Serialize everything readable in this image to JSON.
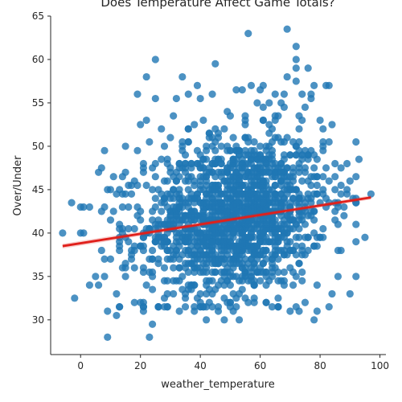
{
  "chart_data": {
    "type": "scatter",
    "title": "Does Temperature Affect Game Totals?",
    "xlabel": "weather_temperature",
    "ylabel": "Over/Under",
    "xlim": [
      -10,
      102
    ],
    "ylim": [
      26,
      65
    ],
    "xticks": [
      0,
      20,
      40,
      60,
      80,
      100
    ],
    "yticks": [
      30,
      35,
      40,
      45,
      50,
      55,
      60,
      65
    ],
    "grid": false,
    "legend": "none",
    "colors": {
      "points": "#1f77b4",
      "regression": "#e0201b",
      "axes": "#262626"
    },
    "series": [
      {
        "points": [
          [
            -6,
            40
          ],
          [
            -3,
            43.5
          ],
          [
            -2,
            32.5
          ],
          [
            0,
            43
          ],
          [
            0,
            40
          ],
          [
            1,
            40
          ],
          [
            1,
            43
          ],
          [
            3,
            34
          ],
          [
            3,
            43
          ],
          [
            5,
            35
          ],
          [
            6,
            47
          ],
          [
            6,
            34
          ],
          [
            7,
            47.5
          ],
          [
            7,
            42.5
          ],
          [
            7,
            38
          ],
          [
            8,
            43
          ],
          [
            8,
            37
          ],
          [
            8,
            35
          ],
          [
            8,
            49.5
          ],
          [
            9,
            45
          ],
          [
            9,
            28
          ],
          [
            9,
            31
          ],
          [
            10,
            45
          ],
          [
            10,
            37
          ],
          [
            10,
            41.5
          ],
          [
            11,
            46.5
          ],
          [
            11,
            42.5
          ],
          [
            12,
            44.5
          ],
          [
            12,
            30.5
          ],
          [
            12,
            33
          ],
          [
            13,
            38
          ],
          [
            14,
            40
          ],
          [
            14,
            43
          ],
          [
            14,
            46.5
          ],
          [
            15,
            50
          ],
          [
            15,
            47
          ],
          [
            15,
            35
          ],
          [
            16,
            39
          ],
          [
            17,
            37.5
          ],
          [
            18,
            32
          ],
          [
            19,
            56
          ],
          [
            19,
            49.5
          ],
          [
            20,
            52.5
          ],
          [
            20,
            32
          ],
          [
            21,
            47
          ],
          [
            21,
            31
          ],
          [
            22,
            58
          ],
          [
            22,
            53
          ],
          [
            23,
            28
          ],
          [
            23,
            50.5
          ],
          [
            24,
            29.5
          ],
          [
            25,
            60
          ],
          [
            25,
            55.5
          ],
          [
            26,
            31.5
          ],
          [
            27,
            52
          ],
          [
            28,
            50
          ],
          [
            29,
            33
          ],
          [
            29,
            48
          ],
          [
            30,
            51
          ],
          [
            31,
            53.5
          ],
          [
            32,
            55.5
          ],
          [
            33,
            31
          ],
          [
            34,
            58
          ],
          [
            34,
            50
          ],
          [
            35,
            33
          ],
          [
            36,
            56
          ],
          [
            36,
            52
          ],
          [
            37,
            48
          ],
          [
            38,
            31
          ],
          [
            38,
            52.5
          ],
          [
            39,
            57
          ],
          [
            40,
            55.5
          ],
          [
            41,
            53
          ],
          [
            42,
            30
          ],
          [
            43,
            51.5
          ],
          [
            44,
            56
          ],
          [
            45,
            59.5
          ],
          [
            45,
            52
          ],
          [
            46,
            31
          ],
          [
            47,
            48
          ],
          [
            48,
            30
          ],
          [
            49,
            54
          ],
          [
            50,
            32
          ],
          [
            51,
            31
          ],
          [
            52,
            56.5
          ],
          [
            53,
            30
          ],
          [
            54,
            56.5
          ],
          [
            55,
            51
          ],
          [
            56,
            63
          ],
          [
            57,
            57
          ],
          [
            58,
            32
          ],
          [
            59,
            55
          ],
          [
            60,
            56.5
          ],
          [
            61,
            57
          ],
          [
            62,
            32
          ],
          [
            63,
            55
          ],
          [
            64,
            52
          ],
          [
            65,
            56
          ],
          [
            66,
            31.5
          ],
          [
            67,
            55
          ],
          [
            68,
            56
          ],
          [
            69,
            63.5
          ],
          [
            69,
            58
          ],
          [
            70,
            31
          ],
          [
            71,
            50.5
          ],
          [
            72,
            61.5
          ],
          [
            72,
            60
          ],
          [
            72,
            59
          ],
          [
            72,
            57.5
          ],
          [
            73,
            31
          ],
          [
            74,
            56
          ],
          [
            75,
            32
          ],
          [
            76,
            59
          ],
          [
            77,
            55.5
          ],
          [
            78,
            30
          ],
          [
            78,
            57
          ],
          [
            79,
            31
          ],
          [
            80,
            53
          ],
          [
            81,
            50
          ],
          [
            82,
            57
          ],
          [
            83,
            57
          ],
          [
            84,
            33
          ],
          [
            85,
            48
          ],
          [
            86,
            35
          ],
          [
            87,
            38
          ],
          [
            88,
            42
          ],
          [
            89,
            48
          ],
          [
            90,
            33
          ],
          [
            90,
            46
          ],
          [
            91,
            44
          ],
          [
            92,
            35
          ],
          [
            93,
            48.5
          ],
          [
            95,
            39.5
          ],
          [
            97,
            44.5
          ]
        ],
        "dense_cloud": {
          "center": [
            52,
            42
          ],
          "x_sd": 15,
          "y_sd": 4.5,
          "count": 1600,
          "x_range": [
            13,
            92
          ],
          "y_range": [
            31.5,
            56
          ]
        }
      }
    ],
    "regression_line": {
      "x": [
        -6,
        97
      ],
      "y": [
        38.5,
        44.1
      ]
    }
  }
}
